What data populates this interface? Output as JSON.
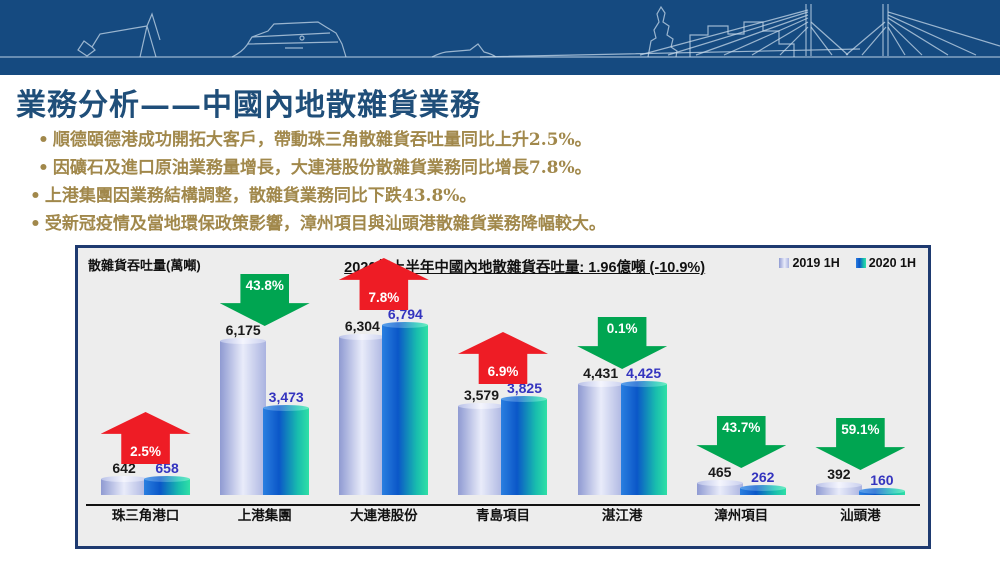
{
  "slide": {
    "title": "業務分析——中國內地散雜貨業務",
    "bullet_marker": "•",
    "bullets": [
      "順德頤德港成功開拓大客戶，帶動珠三角散雜貨吞吐量同比上升2.5%。",
      "因礦石及進口原油業務量增長，大連港股份散雜貨業務同比增長7.8%。",
      "上港集團因業務結構調整，散雜貨業務同比下跌43.8%。",
      "受新冠疫情及當地環保政策影響，漳州項目與汕頭港散雜貨業務降幅較大。"
    ]
  },
  "chart_data": {
    "type": "bar",
    "title": "2020年上半年中國內地散雜貨吞吐量: 1.96億噸 (-10.9%)",
    "ylabel": "散雜貨吞吐量(萬噸)",
    "xlabel": "",
    "categories": [
      "珠三角港口",
      "上港集團",
      "大連港股份",
      "青島項目",
      "湛江港",
      "漳州項目",
      "汕頭港"
    ],
    "series": [
      {
        "name": "2019 1H",
        "values": [
          642,
          6175,
          6304,
          3579,
          4431,
          465,
          392
        ]
      },
      {
        "name": "2020 1H",
        "values": [
          658,
          3473,
          6794,
          3825,
          4425,
          262,
          160
        ]
      }
    ],
    "changes": [
      {
        "dir": "up",
        "label": "2.5%"
      },
      {
        "dir": "down",
        "label": "43.8%"
      },
      {
        "dir": "up",
        "label": "7.8%"
      },
      {
        "dir": "up",
        "label": "6.9%"
      },
      {
        "dir": "down",
        "label": "0.1%"
      },
      {
        "dir": "down",
        "label": "43.7%"
      },
      {
        "dir": "down",
        "label": "59.1%"
      }
    ],
    "ylim": [
      0,
      7000
    ],
    "grid": false,
    "legend_position": "top-right",
    "colors": {
      "banner_blue": "#154a80",
      "title_blue": "#1f4e79",
      "bullet_gold": "#a1884b",
      "chart_border": "#1e3a70",
      "chart_background": "#ededed",
      "up_arrow_red": "#ee1c25",
      "down_arrow_green": "#00a551",
      "bar_2019": "#aab3e0",
      "bar_2020": "#0b57c8",
      "value_2019_text": "#1a1a1a",
      "value_2020_text": "#3434bf"
    }
  }
}
